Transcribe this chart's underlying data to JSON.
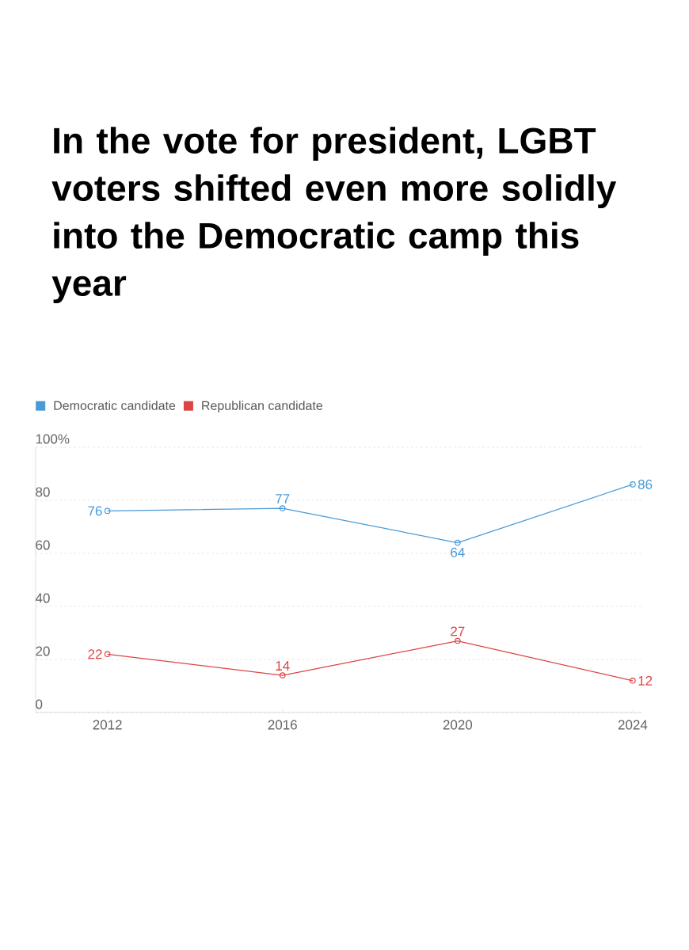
{
  "chart_data": {
    "type": "line",
    "title": "In the vote for president, LGBT voters shifted even more solidly into the Democratic camp this year",
    "categories": [
      "2012",
      "2016",
      "2020",
      "2024"
    ],
    "series": [
      {
        "name": "Democratic candidate",
        "color": "#4a9ad6",
        "values": [
          76,
          77,
          64,
          86
        ]
      },
      {
        "name": "Republican candidate",
        "color": "#dd4444",
        "values": [
          22,
          14,
          27,
          12
        ]
      }
    ],
    "ylim": [
      0,
      100
    ],
    "yticks": [
      0,
      20,
      40,
      60,
      80,
      {
        "value": 100,
        "label": "100%"
      }
    ],
    "grid": "y",
    "legend": "top left",
    "marker": "circle",
    "line_style": "solid",
    "data_labels": true
  }
}
